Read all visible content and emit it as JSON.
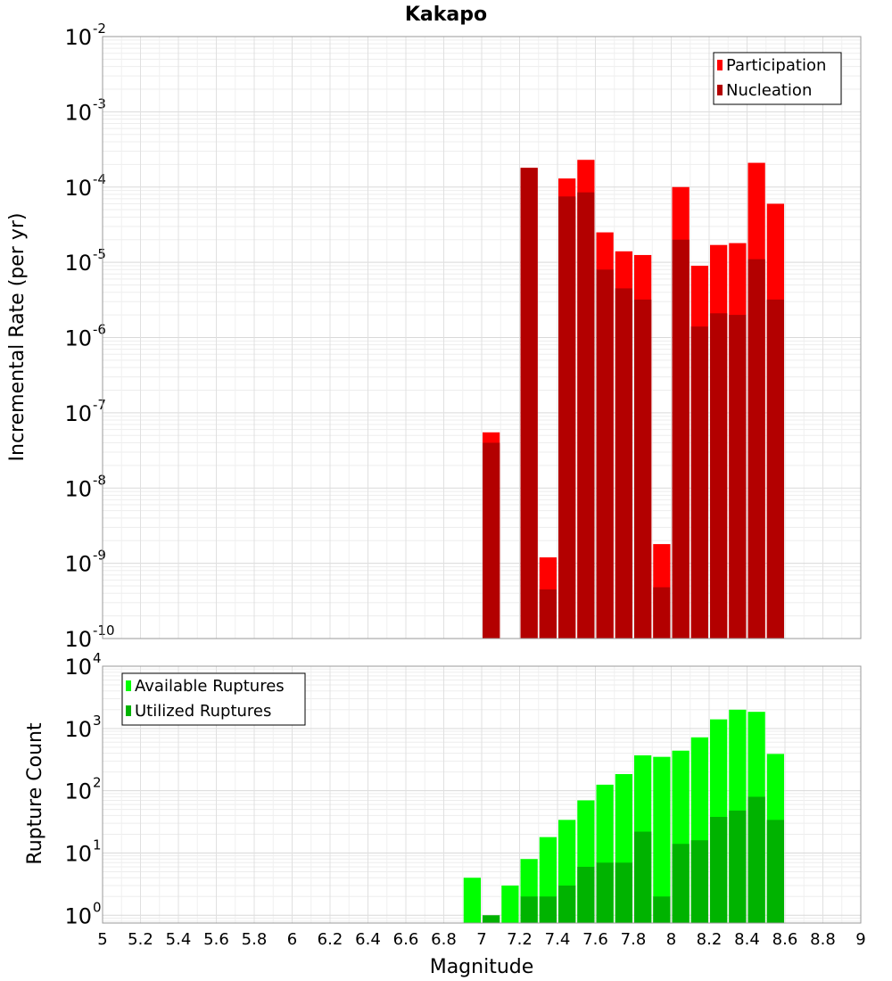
{
  "chart_data": [
    {
      "type": "bar",
      "title": "Kakapo",
      "xlabel": "",
      "ylabel": "Incremental Rate (per yr)",
      "yscale": "log",
      "ylim": [
        1e-10,
        0.01
      ],
      "xlim": [
        5,
        9
      ],
      "grid": true,
      "legend_position": "top-right",
      "x": [
        7.05,
        7.25,
        7.35,
        7.45,
        7.55,
        7.65,
        7.75,
        7.85,
        7.95,
        8.05,
        8.15,
        8.25,
        8.35,
        8.45,
        8.55
      ],
      "series": [
        {
          "name": "Participation",
          "color": "#ff0000",
          "values": [
            5.5e-08,
            0.00018,
            1.2e-09,
            0.00013,
            0.00023,
            2.5e-05,
            1.4e-05,
            1.25e-05,
            1.8e-09,
            0.0001,
            9e-06,
            1.7e-05,
            1.8e-05,
            0.00021,
            6e-05
          ]
        },
        {
          "name": "Nucleation",
          "color": "#b30000",
          "values": [
            4e-08,
            0.00018,
            4.5e-10,
            7.5e-05,
            8.5e-05,
            8e-06,
            4.5e-06,
            3.2e-06,
            4.8e-10,
            2e-05,
            1.4e-06,
            2.1e-06,
            2e-06,
            1.1e-05,
            3.2e-06
          ]
        }
      ],
      "ytick_bases": [
        "10",
        "10",
        "10",
        "10",
        "10",
        "10",
        "10",
        "10",
        "10"
      ],
      "ytick_exps": [
        "-10",
        "-9",
        "-8",
        "-7",
        "-6",
        "-5",
        "-4",
        "-3",
        "-2"
      ]
    },
    {
      "type": "bar",
      "title": "",
      "xlabel": "Magnitude",
      "ylabel": "Rupture Count",
      "yscale": "log",
      "ylim": [
        0.75,
        10000
      ],
      "xlim": [
        5,
        9
      ],
      "grid": true,
      "legend_position": "top-left",
      "x": [
        6.95,
        7.05,
        7.15,
        7.25,
        7.35,
        7.45,
        7.55,
        7.65,
        7.75,
        7.85,
        7.95,
        8.05,
        8.15,
        8.25,
        8.35,
        8.45,
        8.55
      ],
      "series": [
        {
          "name": "Available Ruptures",
          "color": "#00ff00",
          "values": [
            4,
            0,
            3,
            8,
            18,
            34,
            70,
            125,
            185,
            370,
            350,
            440,
            720,
            1400,
            2000,
            1850,
            390
          ]
        },
        {
          "name": "Utilized Ruptures",
          "color": "#00b300",
          "values": [
            0,
            1,
            0,
            2,
            2,
            3,
            6,
            7,
            7,
            22,
            2,
            14,
            16,
            38,
            48,
            80,
            34
          ]
        }
      ],
      "ytick_bases": [
        "10",
        "10",
        "10",
        "10",
        "10"
      ],
      "ytick_exps": [
        "0",
        "1",
        "2",
        "3",
        "4"
      ],
      "xtick_labels": [
        "5",
        "5.2",
        "5.4",
        "5.6",
        "5.8",
        "6",
        "6.2",
        "6.4",
        "6.6",
        "6.8",
        "7",
        "7.2",
        "7.4",
        "7.6",
        "7.8",
        "8",
        "8.2",
        "8.4",
        "8.6",
        "8.8",
        "9"
      ]
    }
  ]
}
